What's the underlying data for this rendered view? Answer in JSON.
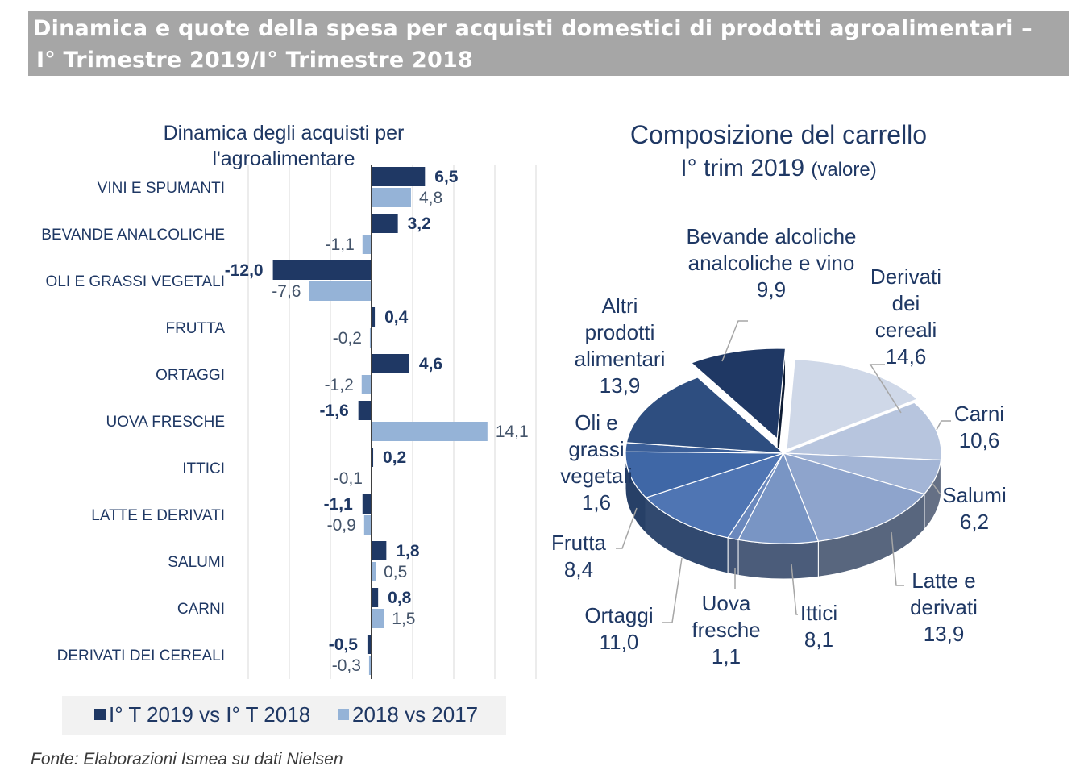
{
  "header": {
    "title_line1": "Dinamica e quote della spesa per acquisti domestici di prodotti agroalimentari –",
    "title_line2": "I° Trimestre 2019/I° Trimestre 2018"
  },
  "source": "Fonte: Elaborazioni Ismea su dati Nielsen",
  "colors": {
    "series_2019": "#1f3864",
    "series_2018": "#95b3d7",
    "label_2019": "#1f3864",
    "label_2018": "#44546a"
  },
  "chart_data": [
    {
      "type": "bar",
      "orientation": "horizontal",
      "title_lines": [
        "Dinamica degli acquisti per",
        "l'agroalimentare"
      ],
      "categories": [
        "VINI E SPUMANTI",
        "BEVANDE ANALCOLICHE",
        "OLI E GRASSI VEGETALI",
        "FRUTTA",
        "ORTAGGI",
        "UOVA FRESCHE",
        "ITTICI",
        "LATTE E DERIVATI",
        "SALUMI",
        "CARNI",
        "DERIVATI DEI CEREALI"
      ],
      "series": [
        {
          "name": "I° T 2019 vs I° T 2018",
          "values": [
            6.5,
            3.2,
            -12.0,
            0.4,
            4.6,
            -1.6,
            0.2,
            -1.1,
            1.8,
            0.8,
            -0.5
          ],
          "labels": [
            "6,5",
            "3,2",
            "-12,0",
            "0,4",
            "4,6",
            "-1,6",
            "0,2",
            "-1,1",
            "1,8",
            "0,8",
            "-0,5"
          ]
        },
        {
          "name": "2018 vs 2017",
          "values": [
            4.8,
            -1.1,
            -7.6,
            -0.2,
            -1.2,
            14.1,
            -0.1,
            -0.9,
            0.5,
            1.5,
            -0.3
          ],
          "labels": [
            "4,8",
            "-1,1",
            "-7,6",
            "-0,2",
            "-1,2",
            "14,1",
            "-0,1",
            "-0,9",
            "0,5",
            "1,5",
            "-0,3"
          ]
        }
      ],
      "xlim": [
        -15,
        20
      ],
      "grid": true,
      "legend": "bottom"
    },
    {
      "type": "pie",
      "style": "3d-exploded",
      "title_line1": "Composizione del carrello",
      "title_line2": "I° trim 2019",
      "title_suffix": "(valore)",
      "slices": [
        {
          "label_lines": [
            "Derivati",
            "dei",
            "cereali"
          ],
          "value": 14.6,
          "value_label": "14,6",
          "color": "#cfd8e8"
        },
        {
          "label_lines": [
            "Carni"
          ],
          "value": 10.6,
          "value_label": "10,6",
          "color": "#b7c5de"
        },
        {
          "label_lines": [
            "Salumi"
          ],
          "value": 6.2,
          "value_label": "6,2",
          "color": "#a3b5d6"
        },
        {
          "label_lines": [
            "Latte e",
            "derivati"
          ],
          "value": 13.9,
          "value_label": "13,9",
          "color": "#8ea4cc"
        },
        {
          "label_lines": [
            "Ittici"
          ],
          "value": 8.1,
          "value_label": "8,1",
          "color": "#7995c4"
        },
        {
          "label_lines": [
            "Uova",
            "fresche"
          ],
          "value": 1.1,
          "value_label": "1,1",
          "color": "#6a88bd"
        },
        {
          "label_lines": [
            "Ortaggi"
          ],
          "value": 11.0,
          "value_label": "11,0",
          "color": "#4f75b3"
        },
        {
          "label_lines": [
            "Frutta"
          ],
          "value": 8.4,
          "value_label": "8,4",
          "color": "#3f67a6"
        },
        {
          "label_lines": [
            "Oli e",
            "grassi",
            "vegetali"
          ],
          "value": 1.6,
          "value_label": "1,6",
          "color": "#3b5f99"
        },
        {
          "label_lines": [
            "Altri",
            "prodotti",
            "alimentari"
          ],
          "value": 13.9,
          "value_label": "13,9",
          "color": "#2e4e80"
        },
        {
          "label_lines": [
            "Bevande alcoliche",
            "analcoliche e vino"
          ],
          "value": 9.9,
          "value_label": "9,9",
          "color": "#1f3864"
        }
      ]
    }
  ]
}
